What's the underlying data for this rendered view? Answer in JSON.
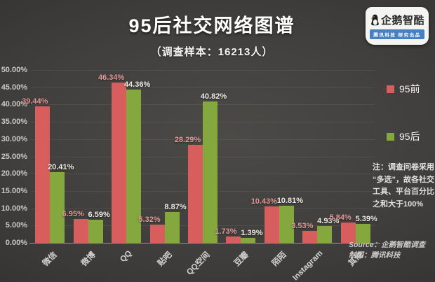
{
  "header": {
    "title": "95后社交网络图谱",
    "subtitle": "（调查样本：16213人）",
    "logo": {
      "name": "企鹅智酷",
      "tagline": "腾讯科技 研究出品"
    }
  },
  "chart_data": {
    "type": "bar",
    "title": "95后社交网络图谱",
    "categories": [
      "微信",
      "微博",
      "QQ",
      "贴吧",
      "QQ空间",
      "豆瓣",
      "陌陌",
      "Instagram",
      "其他"
    ],
    "series": [
      {
        "name": "95前",
        "color": "#d85e5e",
        "label_color": "#e29a99",
        "values": [
          39.44,
          6.95,
          46.34,
          5.32,
          28.29,
          1.73,
          10.43,
          3.53,
          5.84
        ]
      },
      {
        "name": "95后",
        "color": "#84a73e",
        "label_color": "#ecede2",
        "values": [
          20.41,
          6.59,
          44.36,
          8.87,
          40.82,
          1.39,
          10.81,
          4.93,
          5.39
        ]
      }
    ],
    "ylim": [
      0,
      50
    ],
    "ytick_step": 5,
    "yticks": [
      "50.00%",
      "45.00%",
      "40.00%",
      "35.00%",
      "30.00%",
      "25.00%",
      "20.00%",
      "15.00%",
      "10.00%",
      "5.00%",
      "0.00%"
    ],
    "grid": true,
    "legend_position": "right",
    "value_label_suffix": "%"
  },
  "legend": {
    "items": [
      {
        "label": "95前",
        "color": "#d85e5e"
      },
      {
        "label": "95后",
        "color": "#84a73e"
      }
    ]
  },
  "note": {
    "lines": [
      "注：调查问卷采用",
      "“多选”，故各社交",
      "工具、平台百分比",
      "之和大于100%"
    ]
  },
  "source": {
    "line1": "Source：企鹅智酷调查",
    "line2": "制图：腾讯科技"
  }
}
